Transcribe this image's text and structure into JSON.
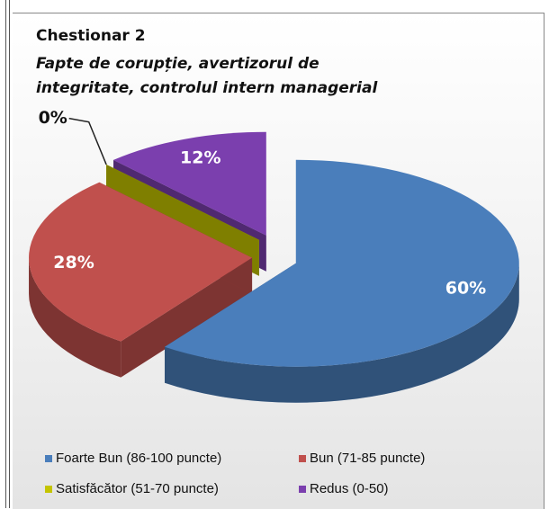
{
  "chart_data": {
    "type": "pie",
    "title": "Chestionar 2",
    "subtitle": "Fapte de corupție, avertizorul de integritate, controlul intern managerial",
    "categories": [
      "Foarte Bun (86-100  puncte)",
      "Bun (71-85  puncte)",
      "Satisfăcător (51-70 puncte)",
      "Redus (0-50)"
    ],
    "values": [
      60,
      28,
      0,
      12
    ],
    "value_labels": [
      "60%",
      "28%",
      "0%",
      "12%"
    ],
    "colors": [
      "#4a7ebb",
      "#c0504d",
      "#c4c400",
      "#7b3fae"
    ],
    "legend": "bottom"
  }
}
